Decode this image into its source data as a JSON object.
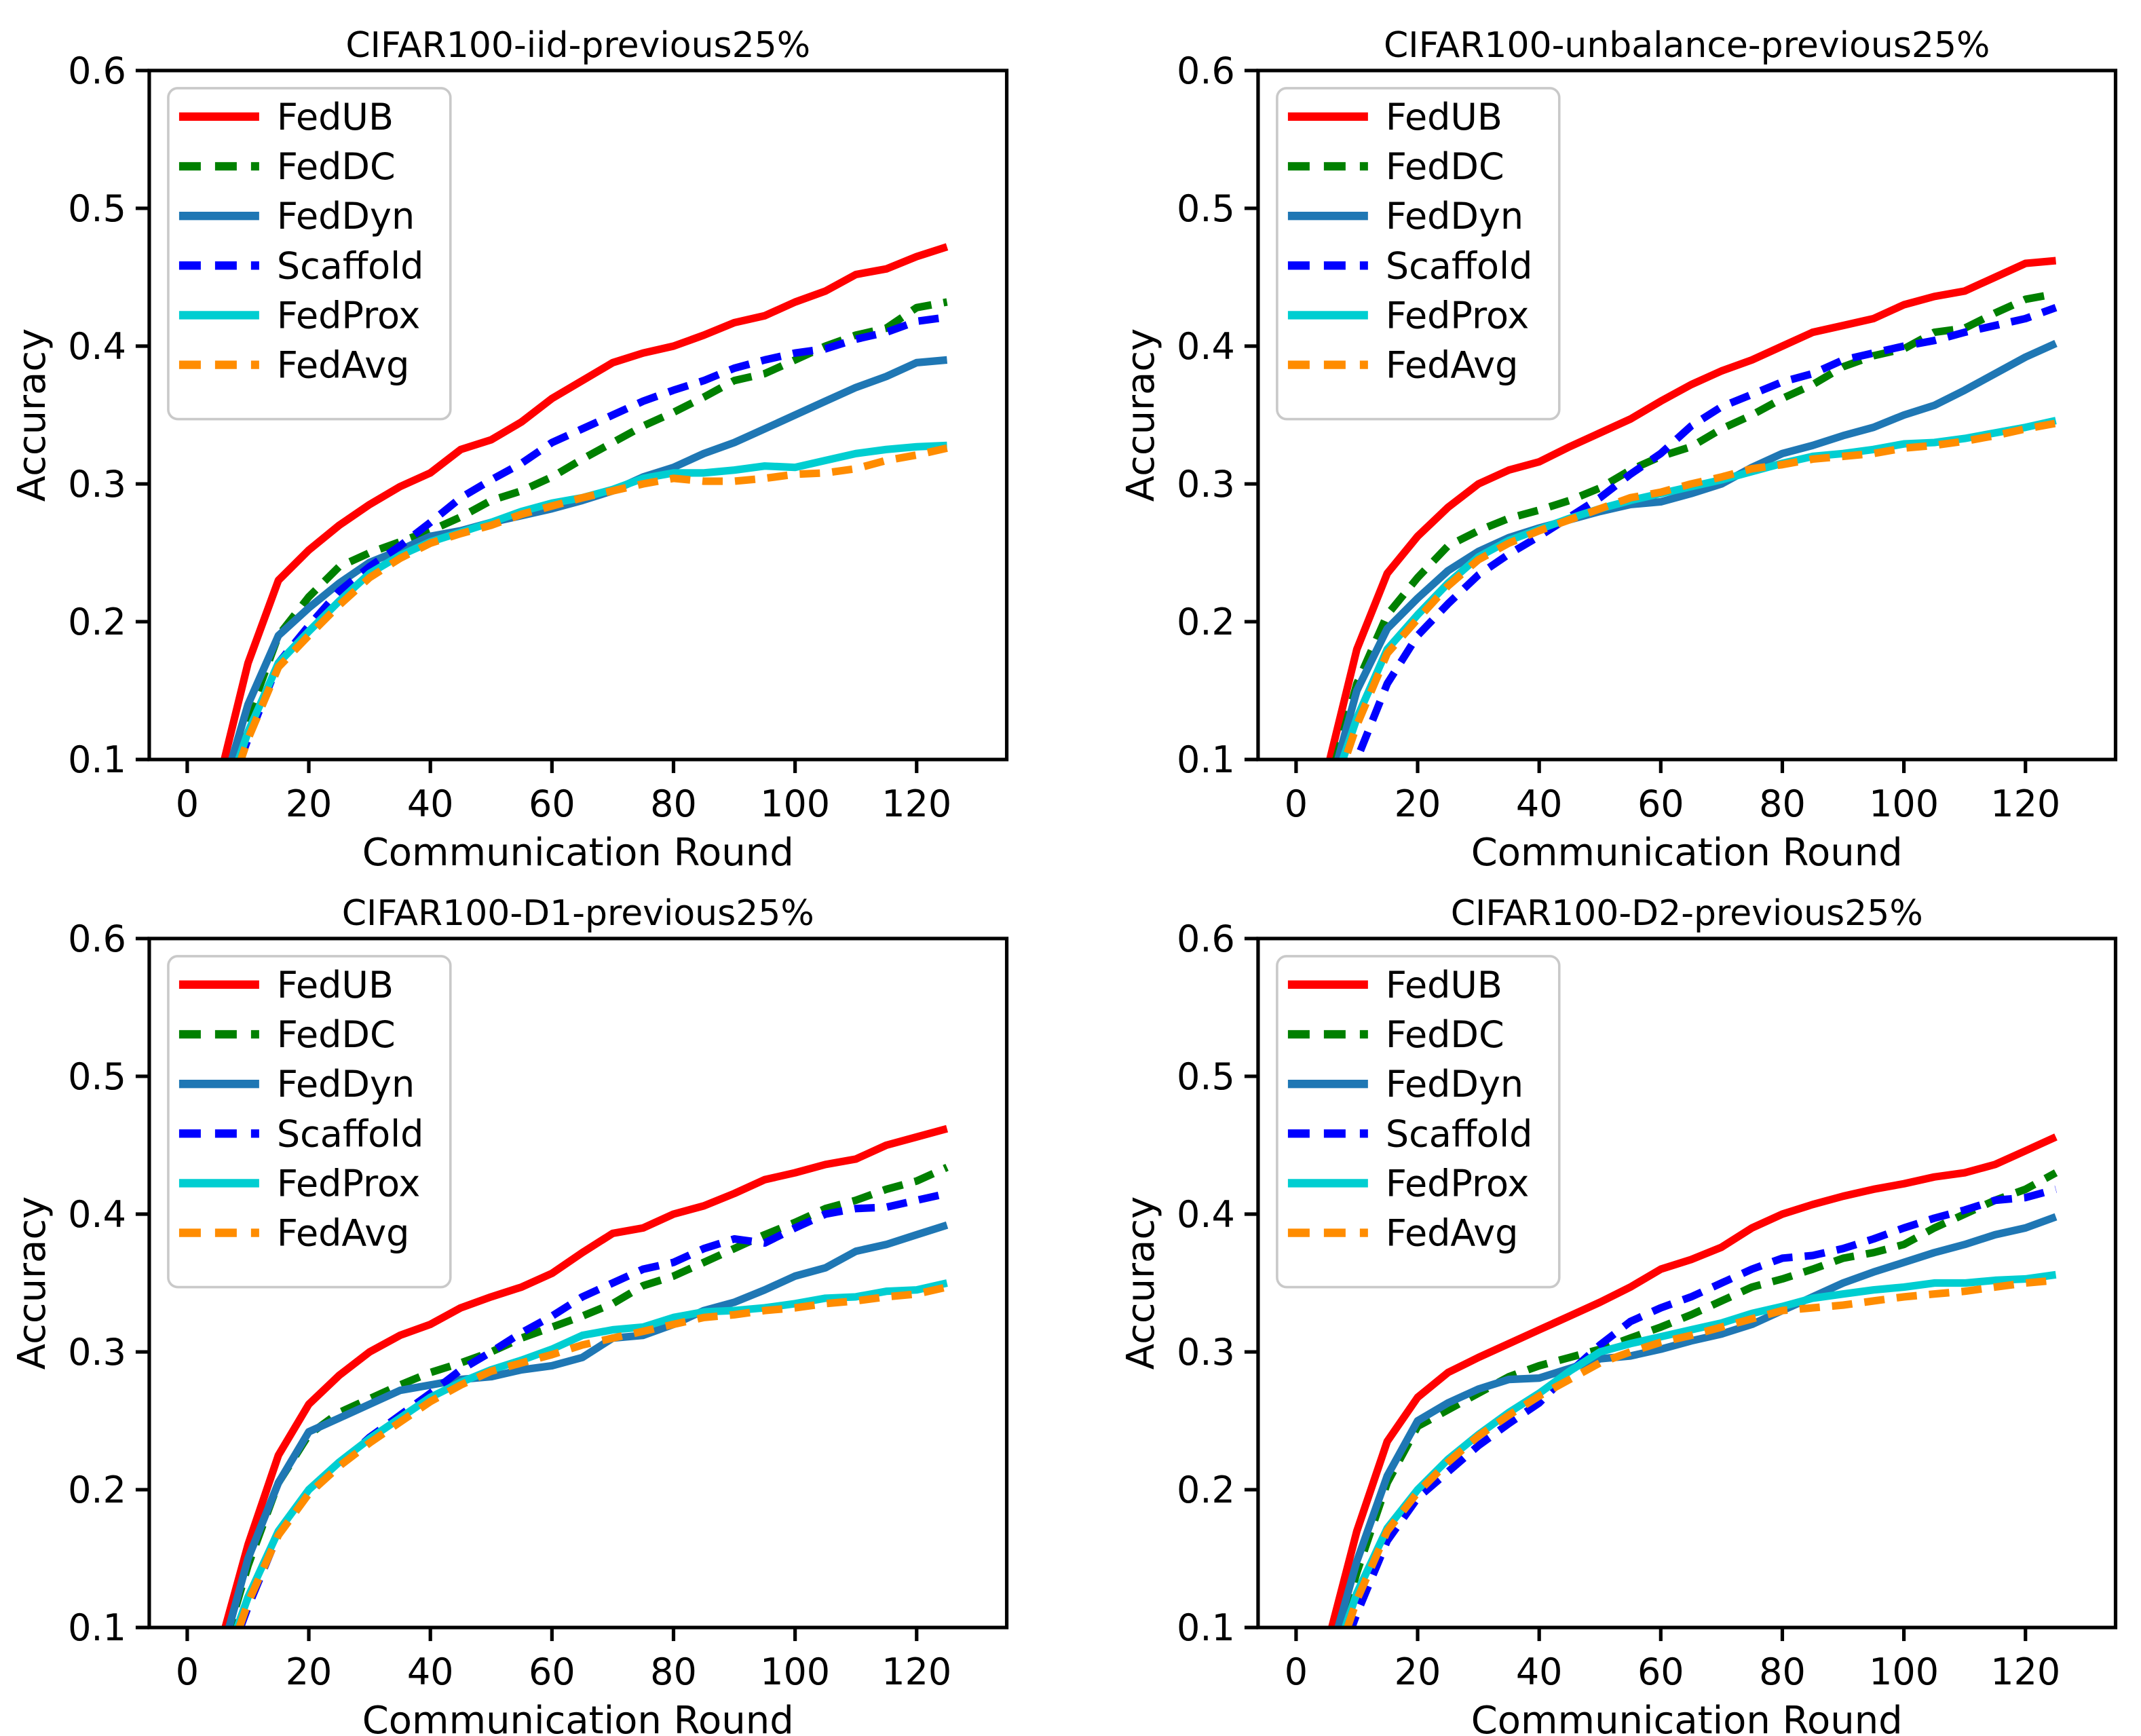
{
  "figure": {
    "background": "#ffffff",
    "frame_color": "#000000",
    "legend_border_color": "#c9c9c9",
    "legend_position": "upper left",
    "grid": "off"
  },
  "axes": {
    "xlabel": "Communication Round",
    "ylabel": "Accuracy",
    "x_ticks": [
      0,
      20,
      40,
      60,
      80,
      100,
      120
    ],
    "y_ticks": [
      0.1,
      0.2,
      0.3,
      0.4,
      0.5,
      0.6
    ],
    "xlim": [
      -6.25,
      135
    ],
    "ylim": [
      0.1,
      0.6
    ]
  },
  "series_meta": [
    {
      "name": "FedUB",
      "color": "#ff0000",
      "dash": false
    },
    {
      "name": "FedDC",
      "color": "#008000",
      "dash": true
    },
    {
      "name": "FedDyn",
      "color": "#1f77b4",
      "dash": false
    },
    {
      "name": "Scaffold",
      "color": "#0000ff",
      "dash": true
    },
    {
      "name": "FedProx",
      "color": "#00ced1",
      "dash": false
    },
    {
      "name": "FedAvg",
      "color": "#ff8c00",
      "dash": true
    }
  ],
  "chart_data": [
    {
      "type": "line",
      "title": "CIFAR100-iid-previous25%",
      "xlabel": "Communication Round",
      "ylabel": "Accuracy",
      "xlim": [
        -6.25,
        135
      ],
      "ylim": [
        0.1,
        0.6
      ],
      "x": [
        5,
        10,
        15,
        20,
        25,
        30,
        35,
        40,
        45,
        50,
        55,
        60,
        65,
        70,
        75,
        80,
        85,
        90,
        95,
        100,
        105,
        110,
        115,
        120,
        125
      ],
      "series": [
        {
          "name": "FedUB",
          "values": [
            0.08,
            0.17,
            0.23,
            0.252,
            0.27,
            0.285,
            0.298,
            0.308,
            0.325,
            0.332,
            0.345,
            0.362,
            0.375,
            0.388,
            0.395,
            0.4,
            0.408,
            0.417,
            0.422,
            0.432,
            0.44,
            0.452,
            0.456,
            0.465,
            0.472
          ]
        },
        {
          "name": "FedDC",
          "values": [
            0.06,
            0.13,
            0.19,
            0.218,
            0.24,
            0.25,
            0.258,
            0.266,
            0.276,
            0.288,
            0.295,
            0.305,
            0.318,
            0.33,
            0.342,
            0.352,
            0.363,
            0.375,
            0.38,
            0.39,
            0.4,
            0.408,
            0.413,
            0.428,
            0.432
          ]
        },
        {
          "name": "FedDyn",
          "values": [
            0.065,
            0.14,
            0.19,
            0.21,
            0.228,
            0.243,
            0.252,
            0.262,
            0.266,
            0.272,
            0.277,
            0.282,
            0.288,
            0.295,
            0.305,
            0.312,
            0.322,
            0.33,
            0.34,
            0.35,
            0.36,
            0.37,
            0.378,
            0.388,
            0.39
          ]
        },
        {
          "name": "Scaffold",
          "values": [
            0.055,
            0.115,
            0.17,
            0.197,
            0.222,
            0.24,
            0.255,
            0.272,
            0.29,
            0.303,
            0.315,
            0.33,
            0.34,
            0.35,
            0.36,
            0.368,
            0.375,
            0.384,
            0.39,
            0.395,
            0.398,
            0.405,
            0.41,
            0.418,
            0.421
          ]
        },
        {
          "name": "FedProx",
          "values": [
            0.055,
            0.12,
            0.17,
            0.193,
            0.215,
            0.235,
            0.248,
            0.258,
            0.265,
            0.272,
            0.28,
            0.286,
            0.29,
            0.296,
            0.304,
            0.308,
            0.308,
            0.31,
            0.313,
            0.312,
            0.317,
            0.322,
            0.325,
            0.327,
            0.328
          ]
        },
        {
          "name": "FedAvg",
          "values": [
            0.05,
            0.115,
            0.167,
            0.19,
            0.212,
            0.232,
            0.246,
            0.257,
            0.264,
            0.27,
            0.278,
            0.284,
            0.29,
            0.295,
            0.3,
            0.304,
            0.302,
            0.302,
            0.304,
            0.307,
            0.308,
            0.311,
            0.317,
            0.321,
            0.326
          ]
        }
      ]
    },
    {
      "type": "line",
      "title": "CIFAR100-unbalance-previous25%",
      "xlabel": "Communication Round",
      "ylabel": "Accuracy",
      "xlim": [
        -6.25,
        135
      ],
      "ylim": [
        0.1,
        0.6
      ],
      "x": [
        5,
        10,
        15,
        20,
        25,
        30,
        35,
        40,
        45,
        50,
        55,
        60,
        65,
        70,
        75,
        80,
        85,
        90,
        95,
        100,
        105,
        110,
        115,
        120,
        125
      ],
      "series": [
        {
          "name": "FedUB",
          "values": [
            0.09,
            0.18,
            0.235,
            0.262,
            0.283,
            0.3,
            0.31,
            0.316,
            0.327,
            0.337,
            0.347,
            0.36,
            0.372,
            0.382,
            0.39,
            0.4,
            0.41,
            0.415,
            0.42,
            0.43,
            0.436,
            0.44,
            0.45,
            0.46,
            0.462
          ]
        },
        {
          "name": "FedDC",
          "values": [
            0.075,
            0.155,
            0.205,
            0.232,
            0.255,
            0.266,
            0.275,
            0.281,
            0.288,
            0.297,
            0.31,
            0.32,
            0.327,
            0.34,
            0.35,
            0.362,
            0.372,
            0.385,
            0.393,
            0.398,
            0.41,
            0.413,
            0.424,
            0.434,
            0.438
          ]
        },
        {
          "name": "FedDyn",
          "values": [
            0.07,
            0.15,
            0.195,
            0.217,
            0.237,
            0.251,
            0.261,
            0.268,
            0.274,
            0.28,
            0.285,
            0.287,
            0.293,
            0.3,
            0.312,
            0.322,
            0.328,
            0.335,
            0.341,
            0.35,
            0.357,
            0.368,
            0.38,
            0.392,
            0.402
          ]
        },
        {
          "name": "Scaffold",
          "values": [
            0.04,
            0.1,
            0.155,
            0.19,
            0.213,
            0.234,
            0.249,
            0.262,
            0.276,
            0.29,
            0.307,
            0.322,
            0.342,
            0.356,
            0.365,
            0.374,
            0.38,
            0.39,
            0.395,
            0.4,
            0.404,
            0.41,
            0.415,
            0.42,
            0.428
          ]
        },
        {
          "name": "FedProx",
          "values": [
            0.065,
            0.13,
            0.18,
            0.205,
            0.228,
            0.247,
            0.259,
            0.267,
            0.275,
            0.282,
            0.288,
            0.293,
            0.298,
            0.303,
            0.309,
            0.315,
            0.32,
            0.322,
            0.325,
            0.329,
            0.33,
            0.333,
            0.337,
            0.341,
            0.346
          ]
        },
        {
          "name": "FedAvg",
          "values": [
            0.06,
            0.125,
            0.177,
            0.202,
            0.226,
            0.245,
            0.257,
            0.266,
            0.274,
            0.282,
            0.29,
            0.294,
            0.3,
            0.305,
            0.311,
            0.314,
            0.318,
            0.32,
            0.322,
            0.326,
            0.328,
            0.331,
            0.335,
            0.34,
            0.344
          ]
        }
      ]
    },
    {
      "type": "line",
      "title": "CIFAR100-D1-previous25%",
      "xlabel": "Communication Round",
      "ylabel": "Accuracy",
      "xlim": [
        -6.25,
        135
      ],
      "ylim": [
        0.1,
        0.6
      ],
      "x": [
        5,
        10,
        15,
        20,
        25,
        30,
        35,
        40,
        45,
        50,
        55,
        60,
        65,
        70,
        75,
        80,
        85,
        90,
        95,
        100,
        105,
        110,
        115,
        120,
        125
      ],
      "series": [
        {
          "name": "FedUB",
          "values": [
            0.08,
            0.16,
            0.225,
            0.262,
            0.283,
            0.3,
            0.312,
            0.32,
            0.332,
            0.34,
            0.347,
            0.357,
            0.372,
            0.386,
            0.39,
            0.4,
            0.406,
            0.415,
            0.425,
            0.43,
            0.436,
            0.44,
            0.45,
            0.456,
            0.462
          ]
        },
        {
          "name": "FedDC",
          "values": [
            0.07,
            0.145,
            0.205,
            0.24,
            0.256,
            0.266,
            0.276,
            0.285,
            0.292,
            0.3,
            0.31,
            0.318,
            0.326,
            0.335,
            0.348,
            0.355,
            0.365,
            0.375,
            0.385,
            0.394,
            0.404,
            0.41,
            0.418,
            0.424,
            0.434
          ]
        },
        {
          "name": "FedDyn",
          "values": [
            0.07,
            0.15,
            0.205,
            0.242,
            0.252,
            0.262,
            0.272,
            0.276,
            0.28,
            0.282,
            0.287,
            0.29,
            0.296,
            0.31,
            0.312,
            0.32,
            0.33,
            0.336,
            0.345,
            0.355,
            0.361,
            0.373,
            0.378,
            0.385,
            0.392
          ]
        },
        {
          "name": "Scaffold",
          "values": [
            0.055,
            0.115,
            0.168,
            0.198,
            0.218,
            0.238,
            0.254,
            0.27,
            0.287,
            0.3,
            0.314,
            0.326,
            0.34,
            0.35,
            0.36,
            0.365,
            0.375,
            0.382,
            0.379,
            0.39,
            0.4,
            0.404,
            0.405,
            0.41,
            0.415
          ]
        },
        {
          "name": "FedProx",
          "values": [
            0.06,
            0.122,
            0.17,
            0.2,
            0.22,
            0.237,
            0.252,
            0.267,
            0.278,
            0.287,
            0.294,
            0.302,
            0.312,
            0.316,
            0.318,
            0.325,
            0.329,
            0.33,
            0.332,
            0.335,
            0.339,
            0.34,
            0.344,
            0.345,
            0.35
          ]
        },
        {
          "name": "FedAvg",
          "values": [
            0.055,
            0.118,
            0.167,
            0.197,
            0.217,
            0.234,
            0.249,
            0.264,
            0.276,
            0.286,
            0.292,
            0.298,
            0.305,
            0.31,
            0.315,
            0.32,
            0.325,
            0.327,
            0.33,
            0.332,
            0.335,
            0.337,
            0.34,
            0.342,
            0.347
          ]
        }
      ]
    },
    {
      "type": "line",
      "title": "CIFAR100-D2-previous25%",
      "xlabel": "Communication Round",
      "ylabel": "Accuracy",
      "xlim": [
        -6.25,
        135
      ],
      "ylim": [
        0.1,
        0.6
      ],
      "x": [
        5,
        10,
        15,
        20,
        25,
        30,
        35,
        40,
        45,
        50,
        55,
        60,
        65,
        70,
        75,
        80,
        85,
        90,
        95,
        100,
        105,
        110,
        115,
        120,
        125
      ],
      "series": [
        {
          "name": "FedUB",
          "values": [
            0.085,
            0.17,
            0.235,
            0.267,
            0.285,
            0.296,
            0.306,
            0.316,
            0.326,
            0.336,
            0.347,
            0.36,
            0.367,
            0.376,
            0.39,
            0.4,
            0.407,
            0.413,
            0.418,
            0.422,
            0.427,
            0.43,
            0.436,
            0.446,
            0.456
          ]
        },
        {
          "name": "FedDC",
          "values": [
            0.065,
            0.14,
            0.205,
            0.246,
            0.258,
            0.27,
            0.282,
            0.29,
            0.296,
            0.302,
            0.31,
            0.318,
            0.327,
            0.337,
            0.347,
            0.353,
            0.36,
            0.368,
            0.372,
            0.378,
            0.39,
            0.4,
            0.41,
            0.418,
            0.43
          ]
        },
        {
          "name": "FedDyn",
          "values": [
            0.07,
            0.148,
            0.21,
            0.25,
            0.263,
            0.273,
            0.28,
            0.281,
            0.288,
            0.295,
            0.297,
            0.302,
            0.308,
            0.313,
            0.32,
            0.33,
            0.34,
            0.35,
            0.358,
            0.365,
            0.372,
            0.378,
            0.385,
            0.39,
            0.398
          ]
        },
        {
          "name": "Scaffold",
          "values": [
            0.05,
            0.11,
            0.163,
            0.194,
            0.213,
            0.232,
            0.248,
            0.263,
            0.285,
            0.305,
            0.322,
            0.332,
            0.34,
            0.35,
            0.36,
            0.368,
            0.37,
            0.375,
            0.382,
            0.39,
            0.397,
            0.403,
            0.41,
            0.412,
            0.418
          ]
        },
        {
          "name": "FedProx",
          "values": [
            0.06,
            0.125,
            0.172,
            0.2,
            0.222,
            0.24,
            0.256,
            0.27,
            0.286,
            0.3,
            0.306,
            0.311,
            0.316,
            0.321,
            0.328,
            0.333,
            0.339,
            0.342,
            0.345,
            0.347,
            0.35,
            0.35,
            0.352,
            0.353,
            0.356
          ]
        },
        {
          "name": "FedAvg",
          "values": [
            0.055,
            0.12,
            0.17,
            0.198,
            0.22,
            0.239,
            0.254,
            0.268,
            0.28,
            0.292,
            0.3,
            0.307,
            0.312,
            0.318,
            0.324,
            0.33,
            0.332,
            0.334,
            0.337,
            0.34,
            0.342,
            0.344,
            0.347,
            0.35,
            0.352
          ]
        }
      ]
    }
  ]
}
